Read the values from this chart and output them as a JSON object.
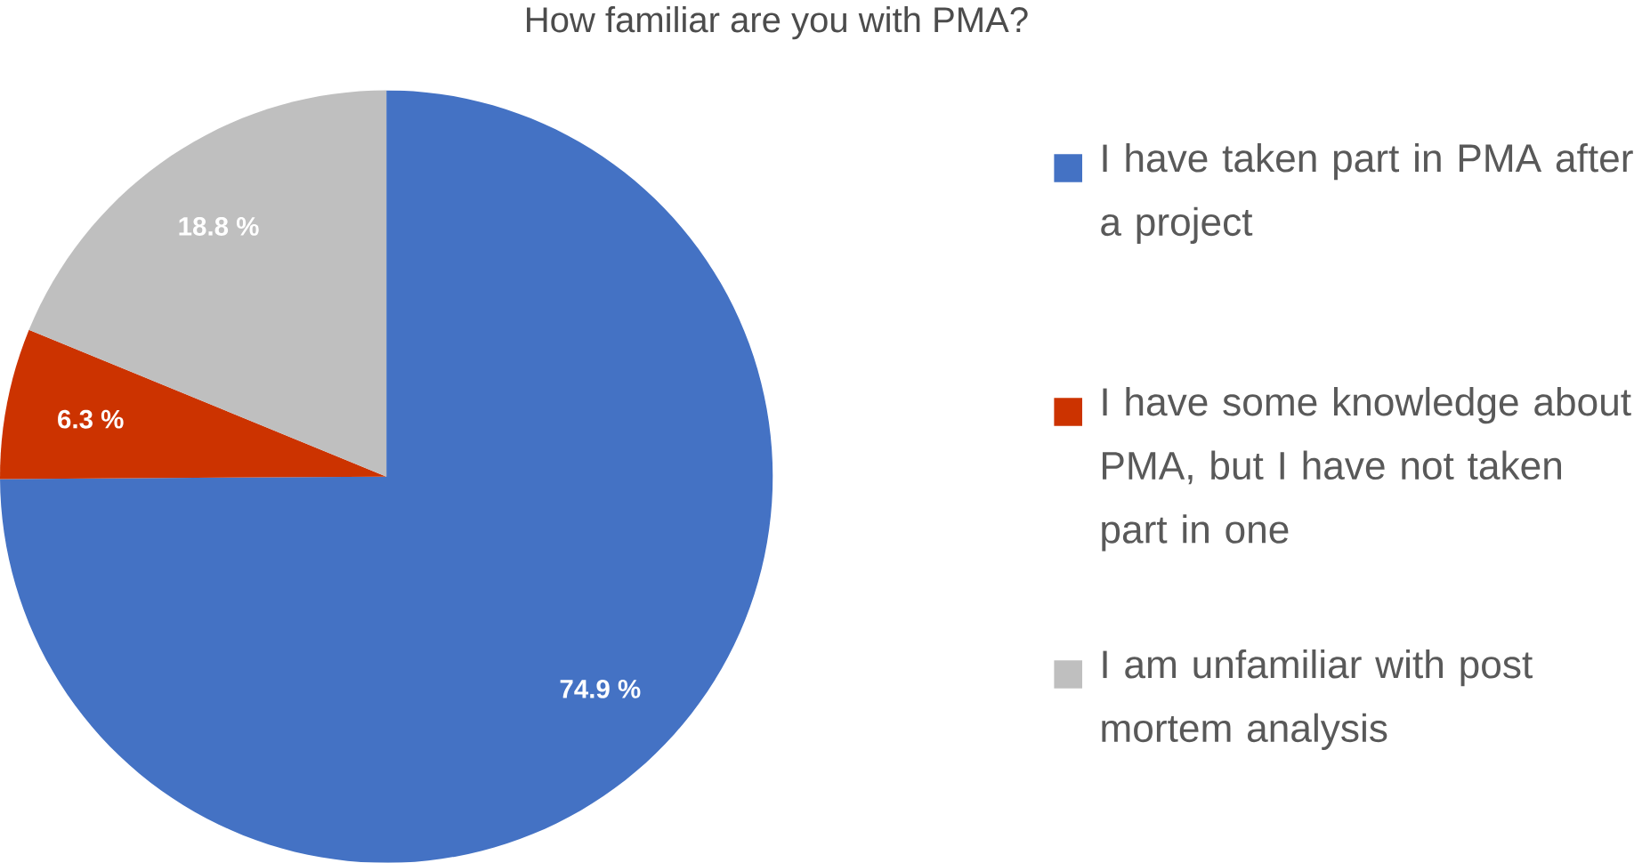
{
  "chart_data": {
    "type": "pie",
    "title": "How familiar are you with PMA?",
    "categories": [
      "I have taken part in PMA after a project",
      "I have some knowledge about PMA, but I have not taken part in one",
      "I am unfamiliar with post mortem analysis"
    ],
    "values": [
      74.9,
      6.3,
      18.8
    ],
    "value_labels": [
      "74.9 %",
      "6.3 %",
      "18.8 %"
    ],
    "colors": [
      "#4472c4",
      "#cc3300",
      "#bfbfbf"
    ],
    "legend": "right"
  }
}
